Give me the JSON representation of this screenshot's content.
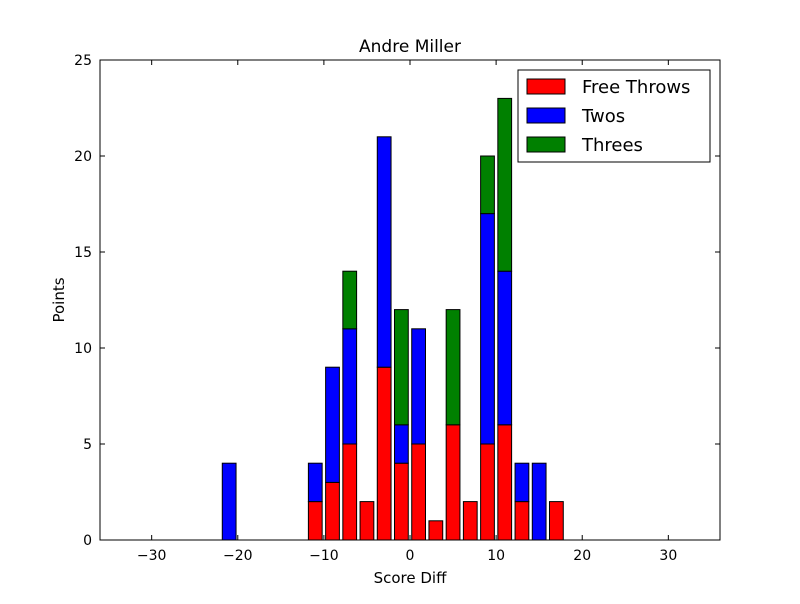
{
  "chart_data": {
    "type": "bar",
    "stacked": true,
    "title": "Andre Miller",
    "xlabel": "Score Diff",
    "ylabel": "Points",
    "xlim": [
      -36,
      36
    ],
    "ylim": [
      0,
      25
    ],
    "xticks": [
      -30,
      -20,
      -10,
      0,
      10,
      20,
      30
    ],
    "xtick_labels": [
      "−30",
      "−20",
      "−10",
      "0",
      "10",
      "20",
      "30"
    ],
    "yticks": [
      0,
      5,
      10,
      15,
      20,
      25
    ],
    "ytick_labels": [
      "0",
      "5",
      "10",
      "15",
      "20",
      "25"
    ],
    "bar_width": 1.6,
    "x": [
      -35,
      -33,
      -31,
      -29,
      -27,
      -25,
      -23,
      -21,
      -19,
      -17,
      -15,
      -13,
      -11,
      -9,
      -7,
      -5,
      -3,
      -1,
      1,
      3,
      5,
      7,
      9,
      11,
      13,
      15,
      17,
      19,
      21,
      23,
      25,
      27,
      29,
      31,
      33,
      35
    ],
    "series": [
      {
        "name": "Free Throws",
        "color": "#ff0000",
        "values": [
          0,
          0,
          0,
          0,
          0,
          0,
          0,
          0,
          0,
          0,
          0,
          0,
          2,
          3,
          5,
          2,
          9,
          4,
          5,
          1,
          6,
          2,
          5,
          6,
          2,
          0,
          2,
          0,
          0,
          0,
          0,
          0,
          0,
          0,
          0,
          0
        ]
      },
      {
        "name": "Twos",
        "color": "#0000ff",
        "values": [
          0,
          0,
          0,
          0,
          0,
          0,
          0,
          4,
          0,
          0,
          0,
          0,
          2,
          6,
          6,
          0,
          12,
          2,
          6,
          0,
          0,
          0,
          12,
          8,
          2,
          4,
          0,
          0,
          0,
          0,
          0,
          0,
          0,
          0,
          0,
          0
        ]
      },
      {
        "name": "Threes",
        "color": "#008000",
        "values": [
          0,
          0,
          0,
          0,
          0,
          0,
          0,
          0,
          0,
          0,
          0,
          0,
          0,
          0,
          3,
          0,
          0,
          6,
          0,
          0,
          6,
          0,
          3,
          9,
          0,
          0,
          0,
          0,
          0,
          0,
          0,
          0,
          0,
          0,
          0,
          0
        ]
      }
    ],
    "legend": {
      "placement": "top-right"
    },
    "grid": false
  }
}
